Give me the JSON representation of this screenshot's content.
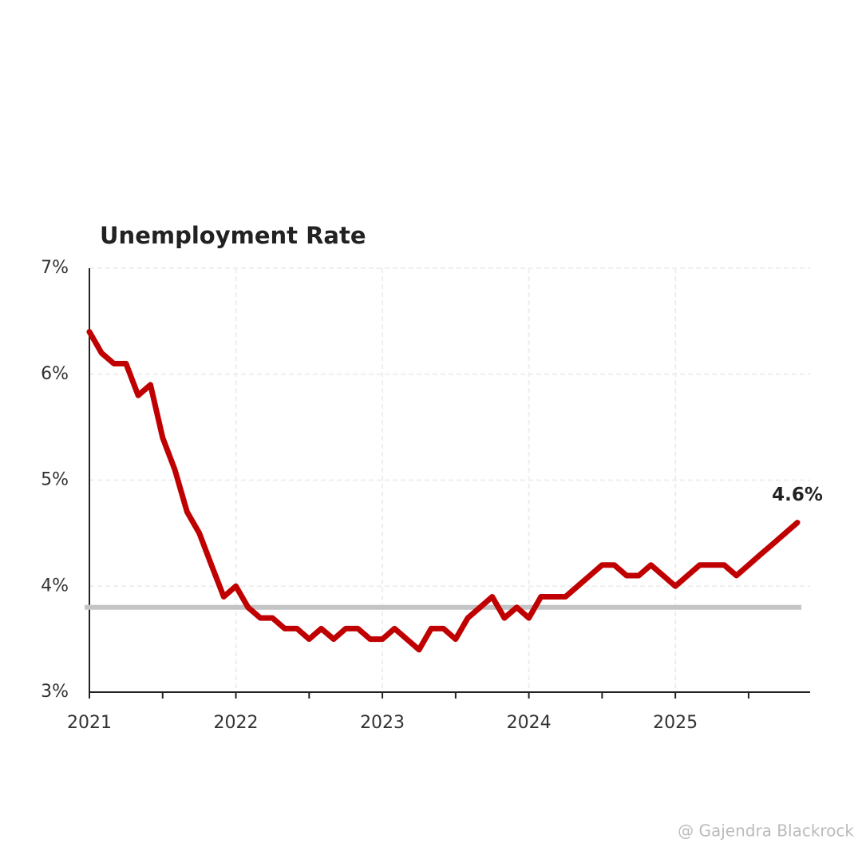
{
  "chart_data": {
    "type": "line",
    "title": "Unemployment Rate",
    "x": [
      2021,
      2021.083,
      2021.167,
      2021.25,
      2021.333,
      2021.417,
      2021.5,
      2021.583,
      2021.667,
      2021.75,
      2021.833,
      2021.917,
      2022,
      2022.083,
      2022.167,
      2022.25,
      2022.333,
      2022.417,
      2022.5,
      2022.583,
      2022.667,
      2022.75,
      2022.833,
      2022.917,
      2023,
      2023.083,
      2023.167,
      2023.25,
      2023.333,
      2023.417,
      2023.5,
      2023.583,
      2023.667,
      2023.75,
      2023.833,
      2023.917,
      2024,
      2024.083,
      2024.167,
      2024.25,
      2024.333,
      2024.417,
      2024.5,
      2024.583,
      2024.667,
      2024.75,
      2024.833,
      2024.917,
      2025,
      2025.083,
      2025.167,
      2025.25,
      2025.333,
      2025.417,
      2025.5,
      2025.583,
      2025.667,
      2025.75,
      2025.833
    ],
    "values": [
      6.4,
      6.2,
      6.1,
      6.1,
      5.8,
      5.9,
      5.4,
      5.1,
      4.7,
      4.5,
      4.2,
      3.9,
      4.0,
      3.8,
      3.7,
      3.7,
      3.6,
      3.6,
      3.5,
      3.6,
      3.5,
      3.6,
      3.6,
      3.5,
      3.5,
      3.6,
      3.5,
      3.4,
      3.6,
      3.6,
      3.5,
      3.7,
      3.8,
      3.9,
      3.7,
      3.8,
      3.7,
      3.9,
      3.9,
      3.9,
      4.0,
      4.1,
      4.2,
      4.2,
      4.1,
      4.1,
      4.2,
      4.1,
      4.0,
      4.1,
      4.2,
      4.2,
      4.2,
      4.1,
      4.2,
      4.3,
      4.4,
      4.5,
      4.6
    ],
    "color": "#c00000",
    "end_label": "4.6%",
    "reference_line": 3.8,
    "reference_color": "#c4c4c4",
    "xlim": [
      2021,
      2025.92
    ],
    "xticks": [
      2021,
      2022,
      2023,
      2024,
      2025
    ],
    "minor_xticks": [
      2021.5,
      2022.5,
      2023.5,
      2024.5,
      2025.5
    ],
    "ylim": [
      3,
      7
    ],
    "yticks": [
      {
        "value": 3,
        "label": "3%"
      },
      {
        "value": 4,
        "label": "4%"
      },
      {
        "value": 5,
        "label": "5%"
      },
      {
        "value": 6,
        "label": "6%"
      },
      {
        "value": 7,
        "label": "7%"
      }
    ],
    "grid": true,
    "watermark": "@ Gajendra Blackrock"
  }
}
